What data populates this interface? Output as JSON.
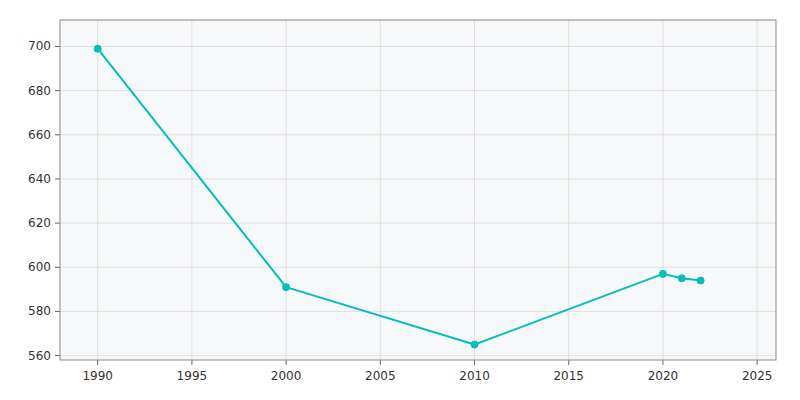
{
  "chart_data": {
    "type": "line",
    "x": [
      1990,
      2000,
      2010,
      2020,
      2021,
      2022
    ],
    "values": [
      699,
      591,
      565,
      597,
      595,
      594
    ],
    "color": "#00BFBF",
    "marker": "circle",
    "xlim": [
      1988,
      2026
    ],
    "ylim": [
      558,
      712
    ],
    "xticks": [
      1990,
      1995,
      2000,
      2005,
      2010,
      2015,
      2020,
      2025
    ],
    "yticks": [
      560,
      580,
      600,
      620,
      640,
      660,
      680,
      700
    ],
    "grid": true
  }
}
